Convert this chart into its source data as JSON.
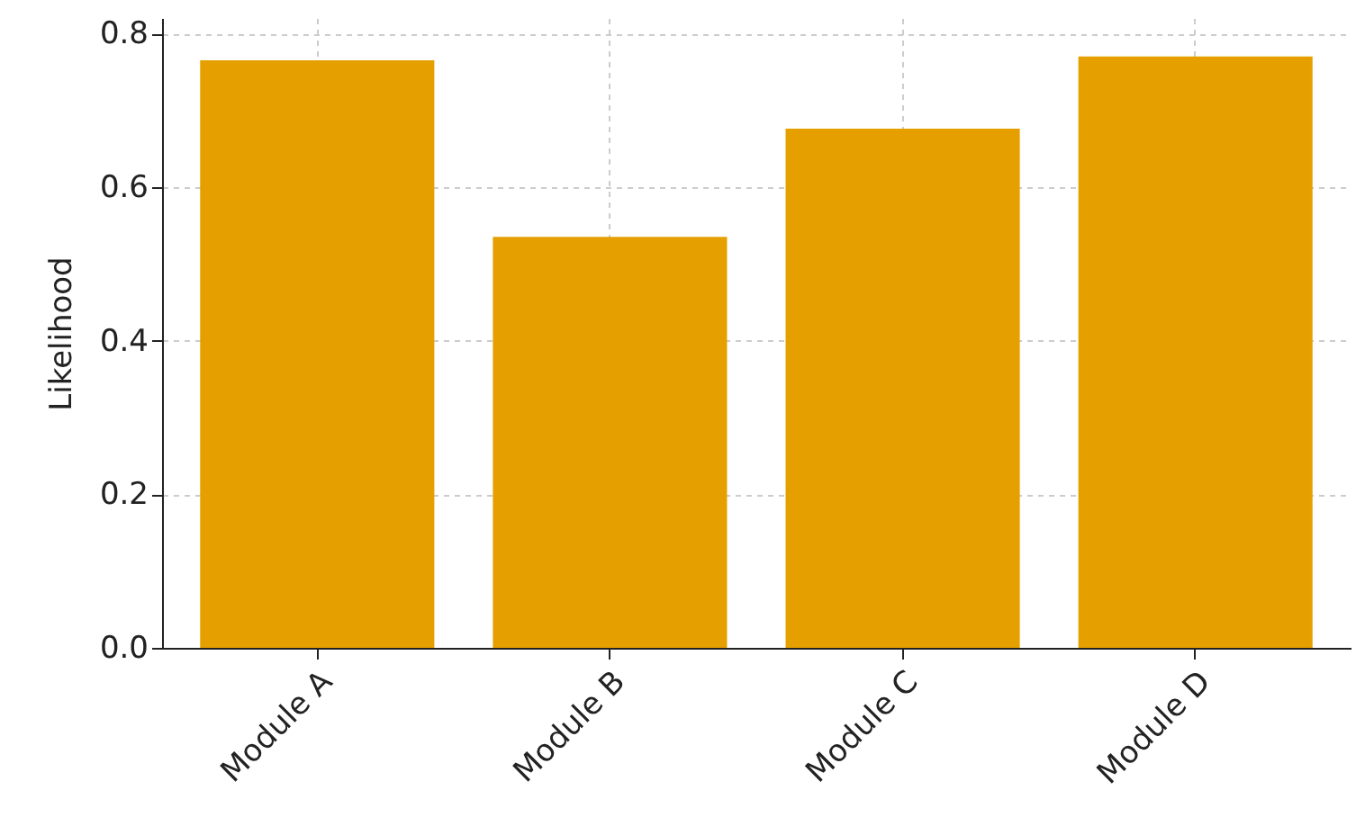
{
  "chart_data": {
    "type": "bar",
    "ylabel": "Likelihood",
    "categories": [
      "Module A",
      "Module B",
      "Module C",
      "Module D"
    ],
    "values": [
      0.765,
      0.535,
      0.676,
      0.77
    ],
    "color": "#e5a000",
    "ylim": [
      0,
      0.82
    ],
    "yticks": [
      {
        "value": 0,
        "label": "0.0"
      },
      0.2,
      0.4,
      0.6,
      0.8
    ],
    "grid": true
  }
}
